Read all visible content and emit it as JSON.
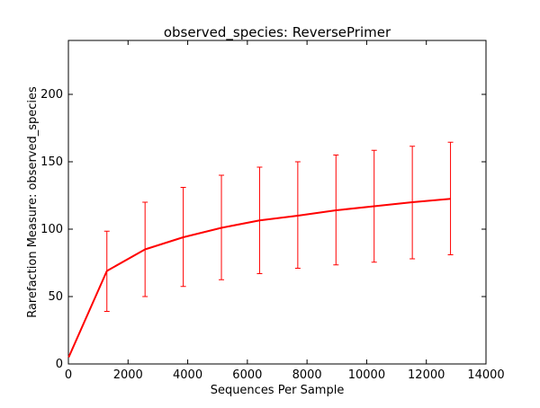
{
  "chart_data": {
    "type": "line",
    "title": "observed_species: ReversePrimer",
    "xlabel": "Sequences Per Sample",
    "ylabel": "Rarefaction Measure: observed_species",
    "xlim": [
      0,
      14000
    ],
    "ylim": [
      0,
      240
    ],
    "xticks": [
      0,
      2000,
      4000,
      6000,
      8000,
      10000,
      12000,
      14000
    ],
    "yticks": [
      0,
      50,
      100,
      150,
      200
    ],
    "xtick_labels": [
      "0",
      "2000",
      "4000",
      "6000",
      "8000",
      "10000",
      "12000",
      "14000"
    ],
    "ytick_labels": [
      "0",
      "50",
      "100",
      "150",
      "200"
    ],
    "grid": false,
    "legend": "none",
    "series": [
      {
        "color": "#ff0000",
        "x": [
          10,
          1290,
          2570,
          3850,
          5130,
          6410,
          7690,
          8970,
          10250,
          11530,
          12810
        ],
        "y": [
          5,
          69,
          85,
          94,
          101,
          106.5,
          110,
          114,
          117,
          120,
          122.5
        ],
        "error_low": [
          null,
          39,
          50,
          57.5,
          62.5,
          67,
          71,
          73.5,
          75.5,
          78,
          81
        ],
        "error_high": [
          null,
          98.5,
          120,
          131,
          140,
          146,
          150,
          155,
          158.5,
          161.5,
          164.5
        ]
      }
    ]
  }
}
